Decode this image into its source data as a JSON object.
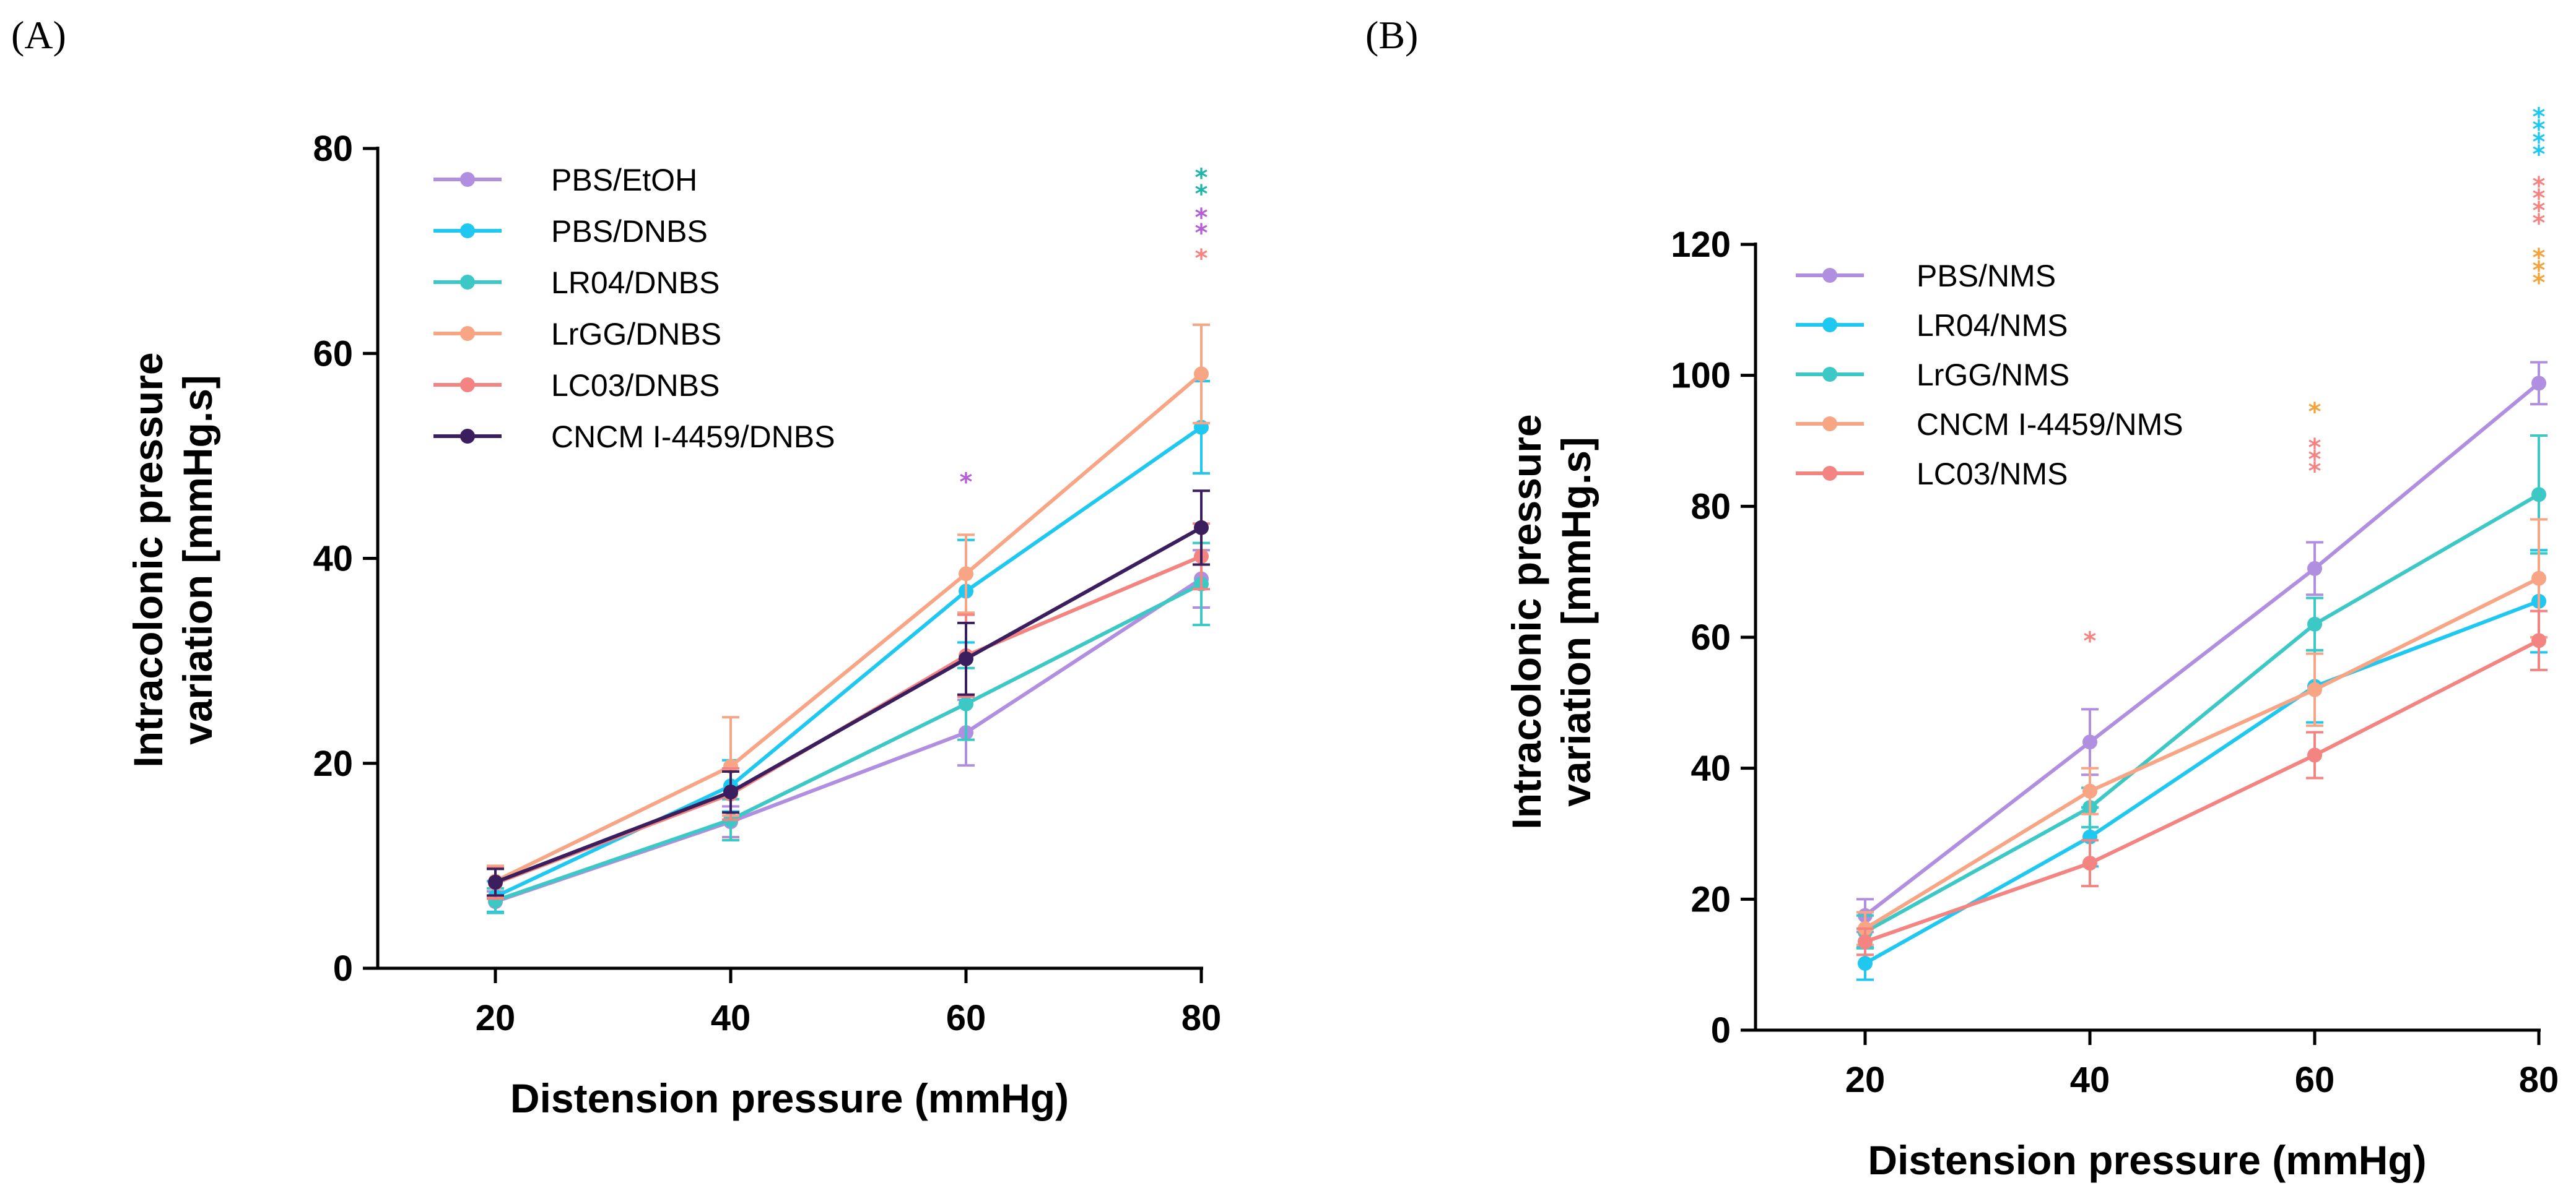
{
  "chart_data": [
    {
      "panel": "(A)",
      "type": "line",
      "xlabel": "Distension pressure (mmHg)",
      "ylabel_lines": [
        "Intracolonic pressure",
        "variation [mmHg.s]"
      ],
      "x": [
        20,
        40,
        60,
        80
      ],
      "xlim": [
        10,
        80
      ],
      "ylim": [
        0,
        80
      ],
      "yticks": [
        0,
        20,
        40,
        60,
        80
      ],
      "xticks": [
        20,
        40,
        60,
        80
      ],
      "legend_position": "top-left",
      "series": [
        {
          "name": "PBS/EtOH",
          "color": "#b08ee0",
          "values": [
            6.5,
            14.3,
            23.0,
            38.0
          ],
          "errors": [
            1.0,
            1.5,
            3.2,
            2.8
          ]
        },
        {
          "name": "PBS/DNBS",
          "color": "#1ec8f0",
          "values": [
            7.0,
            17.8,
            36.8,
            52.8
          ],
          "errors": [
            1.5,
            2.5,
            5.0,
            4.5
          ]
        },
        {
          "name": "LR04/DNBS",
          "color": "#3cc8c4",
          "values": [
            6.6,
            14.5,
            25.8,
            37.5
          ],
          "errors": [
            1.2,
            2.0,
            3.5,
            4.0
          ]
        },
        {
          "name": "LrGG/DNBS",
          "color": "#f7a585",
          "values": [
            8.5,
            19.7,
            38.5,
            58.0
          ],
          "errors": [
            1.5,
            4.8,
            3.8,
            4.8
          ]
        },
        {
          "name": "LC03/DNBS",
          "color": "#f48482",
          "values": [
            8.3,
            17.0,
            30.5,
            40.2
          ],
          "errors": [
            1.5,
            2.5,
            4.0,
            3.2
          ]
        },
        {
          "name": "CNCM I-4459/DNBS",
          "color": "#3a1e5e",
          "values": [
            8.4,
            17.2,
            30.2,
            43.0
          ],
          "errors": [
            1.3,
            2.0,
            3.5,
            3.6
          ]
        }
      ],
      "annotations": [
        {
          "x": 60,
          "text": "*",
          "color": "#b55fd6",
          "y": 47.5
        },
        {
          "x": 80,
          "text": "*",
          "color": "#1fb5aa",
          "y": 77.2
        },
        {
          "x": 80,
          "text": "*",
          "color": "#1fb5aa",
          "y": 75.6
        },
        {
          "x": 80,
          "text": "*",
          "color": "#b55fd6",
          "y": 73.3
        },
        {
          "x": 80,
          "text": "*",
          "color": "#b55fd6",
          "y": 71.8
        },
        {
          "x": 80,
          "text": "*",
          "color": "#f48482",
          "y": 69.3
        }
      ]
    },
    {
      "panel": "(B)",
      "type": "line",
      "xlabel": "Distension pressure (mmHg)",
      "ylabel_lines": [
        "Intracolonic pressure",
        "variation [mmHg.s]"
      ],
      "x": [
        20,
        40,
        60,
        80
      ],
      "xlim": [
        10,
        80
      ],
      "ylim": [
        0,
        120
      ],
      "yticks": [
        0,
        20,
        40,
        60,
        80,
        100,
        120
      ],
      "xticks": [
        20,
        40,
        60,
        80
      ],
      "legend_position": "top-left",
      "series": [
        {
          "name": "PBS/NMS",
          "color": "#b08ee0",
          "values": [
            17.5,
            44.0,
            70.5,
            98.8
          ],
          "errors": [
            2.5,
            5.0,
            4.0,
            3.2
          ]
        },
        {
          "name": "LR04/NMS",
          "color": "#1ec8f0",
          "values": [
            10.2,
            29.5,
            52.5,
            65.5
          ],
          "errors": [
            2.5,
            4.5,
            5.5,
            7.8
          ]
        },
        {
          "name": "LrGG/NMS",
          "color": "#3cc8c4",
          "values": [
            15.0,
            34.0,
            62.0,
            81.8
          ],
          "errors": [
            2.5,
            3.0,
            4.0,
            9.0
          ]
        },
        {
          "name": "CNCM I-4459/NMS",
          "color": "#f7a585",
          "values": [
            15.5,
            36.5,
            52.0,
            69.0
          ],
          "errors": [
            2.5,
            3.5,
            5.5,
            9.0
          ]
        },
        {
          "name": "LC03/NMS",
          "color": "#f48482",
          "values": [
            13.5,
            25.5,
            42.0,
            59.5
          ],
          "errors": [
            2.0,
            3.5,
            3.5,
            4.5
          ]
        }
      ],
      "annotations": [
        {
          "x": 40,
          "text": "*",
          "color": "#f48482",
          "y": 59.5
        },
        {
          "x": 60,
          "text": "*",
          "color": "#f3a33c",
          "y": 94.5
        },
        {
          "x": 60,
          "text": "*",
          "color": "#f48482",
          "y": 89.0
        },
        {
          "x": 60,
          "text": "*",
          "color": "#f48482",
          "y": 87.2
        },
        {
          "x": 60,
          "text": "*",
          "color": "#f48482",
          "y": 85.4
        },
        {
          "x": 80,
          "text": "*",
          "color": "#1ec8f0",
          "y": 139.5
        },
        {
          "x": 80,
          "text": "*",
          "color": "#1ec8f0",
          "y": 137.6
        },
        {
          "x": 80,
          "text": "*",
          "color": "#1ec8f0",
          "y": 135.7
        },
        {
          "x": 80,
          "text": "*",
          "color": "#1ec8f0",
          "y": 133.8
        },
        {
          "x": 80,
          "text": "*",
          "color": "#f48482",
          "y": 129.0
        },
        {
          "x": 80,
          "text": "*",
          "color": "#f48482",
          "y": 127.1
        },
        {
          "x": 80,
          "text": "*",
          "color": "#f48482",
          "y": 125.2
        },
        {
          "x": 80,
          "text": "*",
          "color": "#f48482",
          "y": 123.3
        },
        {
          "x": 80,
          "text": "*",
          "color": "#f3a33c",
          "y": 118.0
        },
        {
          "x": 80,
          "text": "*",
          "color": "#f3a33c",
          "y": 116.1
        },
        {
          "x": 80,
          "text": "*",
          "color": "#f3a33c",
          "y": 114.2
        }
      ]
    }
  ]
}
